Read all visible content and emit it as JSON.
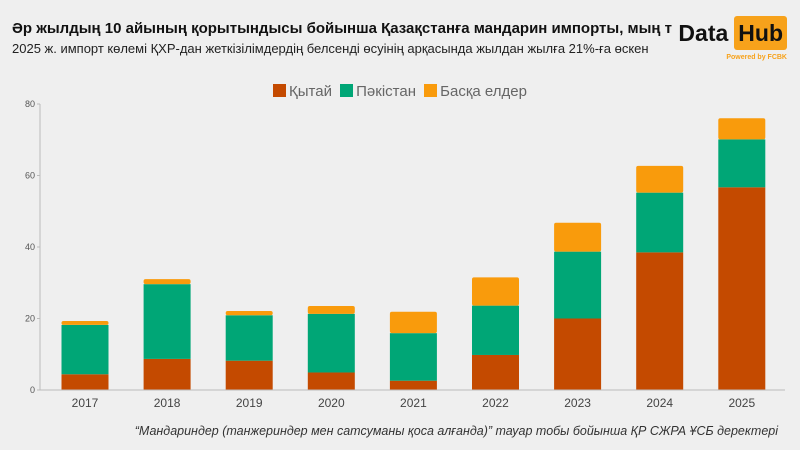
{
  "header": {
    "title": "Әр жылдың 10 айының қорытындысы бойынша Қазақстанға мандарин импорты, мың т",
    "subtitle": "2025 ж. импорт көлемі ҚХР-дан жеткізілімдердің белсенді өсуінің арқасында жылдан жылға 21%-ға өскен"
  },
  "logo": {
    "part1": "Data",
    "part2": "Hub",
    "tagline": "Powered by FCBK"
  },
  "footer": {
    "source": "“Мандариндер (танжериндер мен сатсуманы қоса алғанда)” тауар тобы бойынша ҚР СЖРА ҰСБ деректері"
  },
  "chart_data": {
    "type": "bar",
    "stacked": true,
    "categories": [
      "2017",
      "2018",
      "2019",
      "2020",
      "2021",
      "2022",
      "2023",
      "2024",
      "2025"
    ],
    "series": [
      {
        "name": "Қытай",
        "color": "#c44a00",
        "values": [
          4.4,
          8.7,
          8.2,
          4.9,
          2.6,
          9.8,
          20.0,
          38.5,
          56.7
        ]
      },
      {
        "name": "Пәкістан",
        "color": "#00a676",
        "values": [
          13.8,
          20.9,
          12.7,
          16.4,
          13.3,
          13.8,
          18.7,
          16.7,
          13.4
        ]
      },
      {
        "name": "Басқа елдер",
        "color": "#f99b0c",
        "values": [
          1.1,
          1.4,
          1.2,
          2.2,
          6.0,
          7.9,
          8.1,
          7.5,
          5.9
        ]
      }
    ],
    "yticks": [
      "0",
      "20",
      "40",
      "60",
      "80"
    ],
    "ylim": [
      0,
      80
    ],
    "grid": false,
    "legend_position": "top"
  }
}
